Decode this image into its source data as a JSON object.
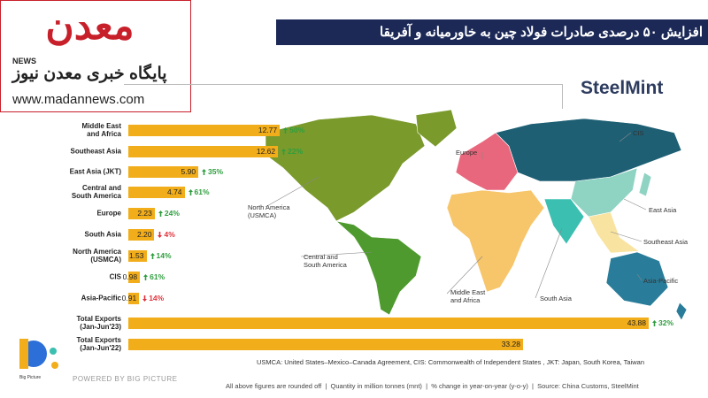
{
  "header": {
    "title": "افزایش ۵۰ درصدی صادرات فولاد چین به خاورمیانه و آفریقا"
  },
  "logo": {
    "name": "معدن",
    "news": "NEWS",
    "tagline": "پایگاه خبری معدن نیوز",
    "url": "www.madannews.com"
  },
  "brand": "SteelMint",
  "chart_data": {
    "type": "bar",
    "orientation": "horizontal",
    "color": "#f2ad1a",
    "categories": [
      "Middle East\nand Africa",
      "Southeast Asia",
      "East Asia (JKT)",
      "Central and\nSouth America",
      "Europe",
      "South Asia",
      "North America\n(USMCA)",
      "CIS",
      "Asia-Pacific",
      "Total Exports\n(Jan-Jun'23)",
      "Total Exports\n(Jan-Jun'22)"
    ],
    "values": [
      12.77,
      12.62,
      5.9,
      4.74,
      2.23,
      2.2,
      1.53,
      0.98,
      0.91,
      43.88,
      33.28
    ],
    "value_labels": [
      "12.77",
      "12.62",
      "5.90",
      "4.74",
      "2.23",
      "2.20",
      "1.53",
      "0.98",
      "0.91",
      "43.88",
      "33.28"
    ],
    "change": {
      "values": [
        50,
        22,
        35,
        61,
        24,
        -4,
        14,
        61,
        -14,
        32,
        null
      ],
      "value_labels": [
        "50%",
        "22%",
        "35%",
        "61%",
        "24%",
        "4%",
        "14%",
        "61%",
        "14%",
        "32%",
        null
      ]
    },
    "change_colors": {
      "up": "#2e9e3e",
      "down": "#e0303a"
    }
  },
  "map": {
    "labels": [
      "CIS",
      "Europe",
      "East Asia",
      "North America\n(USMCA)",
      "Southeast Asia",
      "Central and\nSouth America",
      "Asia-Pacific",
      "Middle East\nand Africa",
      "South Asia"
    ]
  },
  "footer": {
    "note": "USMCA: United States–Mexico–Canada Agreement, CIS: Commonwealth of Independent States , JKT: Japan, South Korea, Taiwan",
    "powered": "POWERED BY BIG PICTURE",
    "bp": "Big Picture",
    "source": "All above figures are rounded off  |  Quantity in million tonnes (mnt)  |  % change in year-on-year (y-o-y)  |  Source: China Customs, SteelMint"
  }
}
